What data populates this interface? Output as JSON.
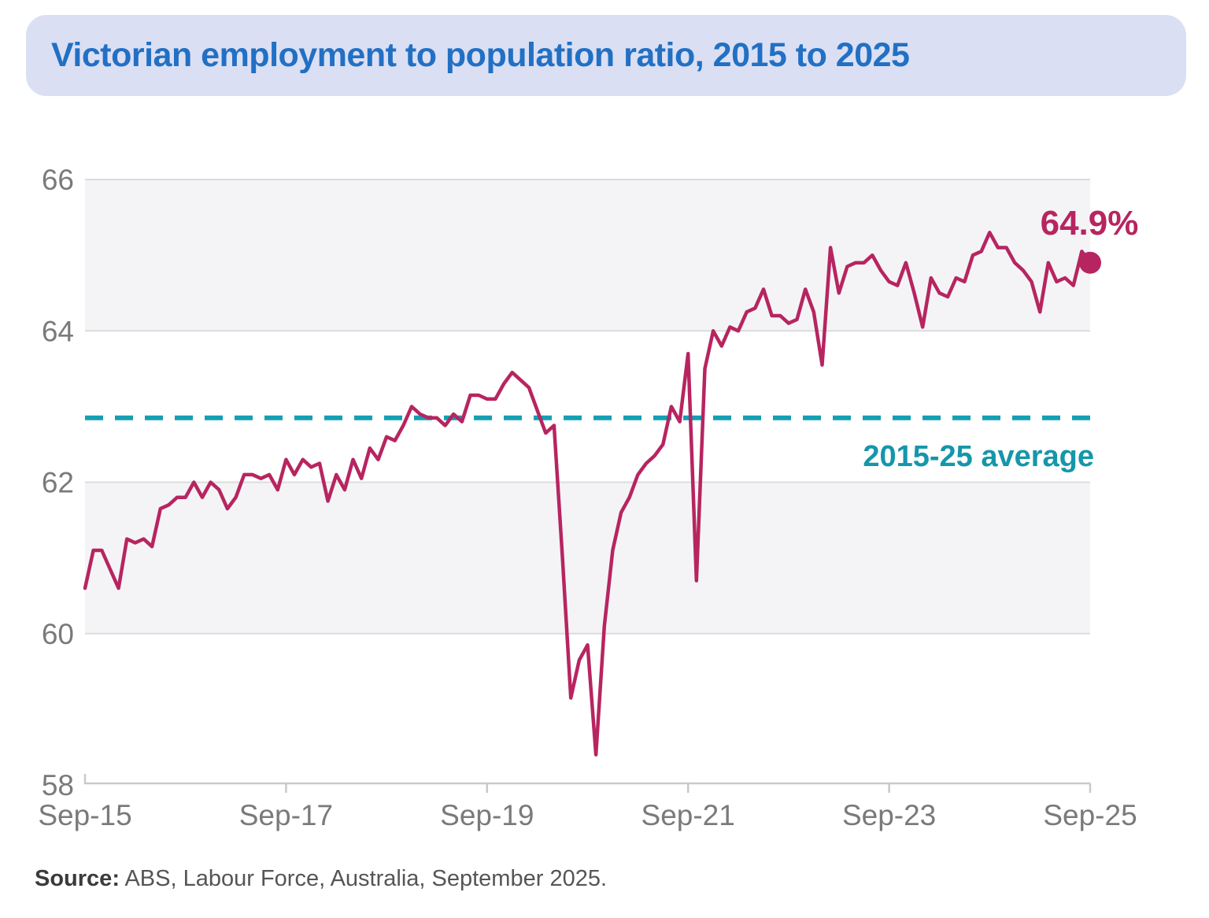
{
  "title": "Victorian employment to population ratio, 2015 to 2025",
  "annotations": {
    "last_value_label": "64.9%",
    "average_label": "2015-25 average"
  },
  "source": {
    "label": "Source:",
    "text": " ABS, Labour Force, Australia, September 2025."
  },
  "colors": {
    "line": "#b72560",
    "marker": "#b72560",
    "teal_dash": "#149fb4",
    "teal_text": "#1596ab",
    "band": "#f4f4f7",
    "grid": "#dcdcdc",
    "axis_line": "#c9c9c9",
    "axis_text": "#7a7a7a",
    "title_blue": "#2170c4",
    "banner_bg": "#dbdff3"
  },
  "chart_data": {
    "type": "line",
    "title": "Victorian employment to population ratio, 2015 to 2025",
    "series_name": "Victorian employment to population ratio (%)",
    "unit": "%",
    "frequency": "monthly",
    "x_start": "Sep-2015",
    "x_end": "Sep-2025",
    "x_tick_labels": [
      "Sep-15",
      "Sep-17",
      "Sep-19",
      "Sep-21",
      "Sep-23",
      "Sep-25"
    ],
    "x_tick_indices": [
      0,
      24,
      48,
      72,
      96,
      120
    ],
    "y_ticks": [
      58,
      60,
      62,
      64,
      66
    ],
    "ylim": [
      58,
      66
    ],
    "grid": "horizontal",
    "legend_position": "none",
    "shaded_bands": [
      [
        64,
        66
      ],
      [
        60,
        62
      ]
    ],
    "average_line": {
      "value": 62.85,
      "label": "2015-25 average",
      "style": "dashed"
    },
    "last_point": {
      "x": "Sep-25",
      "value": 64.9,
      "label": "64.9%"
    },
    "values": [
      60.6,
      61.1,
      61.1,
      60.85,
      60.6,
      61.25,
      61.2,
      61.25,
      61.15,
      61.65,
      61.7,
      61.8,
      61.8,
      62.0,
      61.8,
      62.0,
      61.9,
      61.65,
      61.8,
      62.1,
      62.1,
      62.05,
      62.1,
      61.9,
      62.3,
      62.1,
      62.3,
      62.2,
      62.25,
      61.75,
      62.1,
      61.9,
      62.3,
      62.05,
      62.45,
      62.3,
      62.6,
      62.55,
      62.75,
      63.0,
      62.9,
      62.85,
      62.85,
      62.75,
      62.9,
      62.8,
      63.15,
      63.15,
      63.1,
      63.1,
      63.3,
      63.45,
      63.35,
      63.25,
      62.95,
      62.65,
      62.75,
      61.0,
      59.15,
      59.65,
      59.85,
      58.4,
      60.1,
      61.1,
      61.6,
      61.8,
      62.1,
      62.25,
      62.35,
      62.5,
      63.0,
      62.8,
      63.7,
      60.7,
      63.5,
      64.0,
      63.8,
      64.05,
      64.0,
      64.25,
      64.3,
      64.55,
      64.2,
      64.2,
      64.1,
      64.15,
      64.55,
      64.25,
      63.55,
      65.1,
      64.5,
      64.85,
      64.9,
      64.9,
      65.0,
      64.8,
      64.65,
      64.6,
      64.9,
      64.5,
      64.05,
      64.7,
      64.5,
      64.45,
      64.7,
      64.65,
      65.0,
      65.05,
      65.3,
      65.1,
      65.1,
      64.9,
      64.8,
      64.65,
      64.25,
      64.9,
      64.65,
      64.7,
      64.6,
      65.05,
      64.9
    ]
  }
}
